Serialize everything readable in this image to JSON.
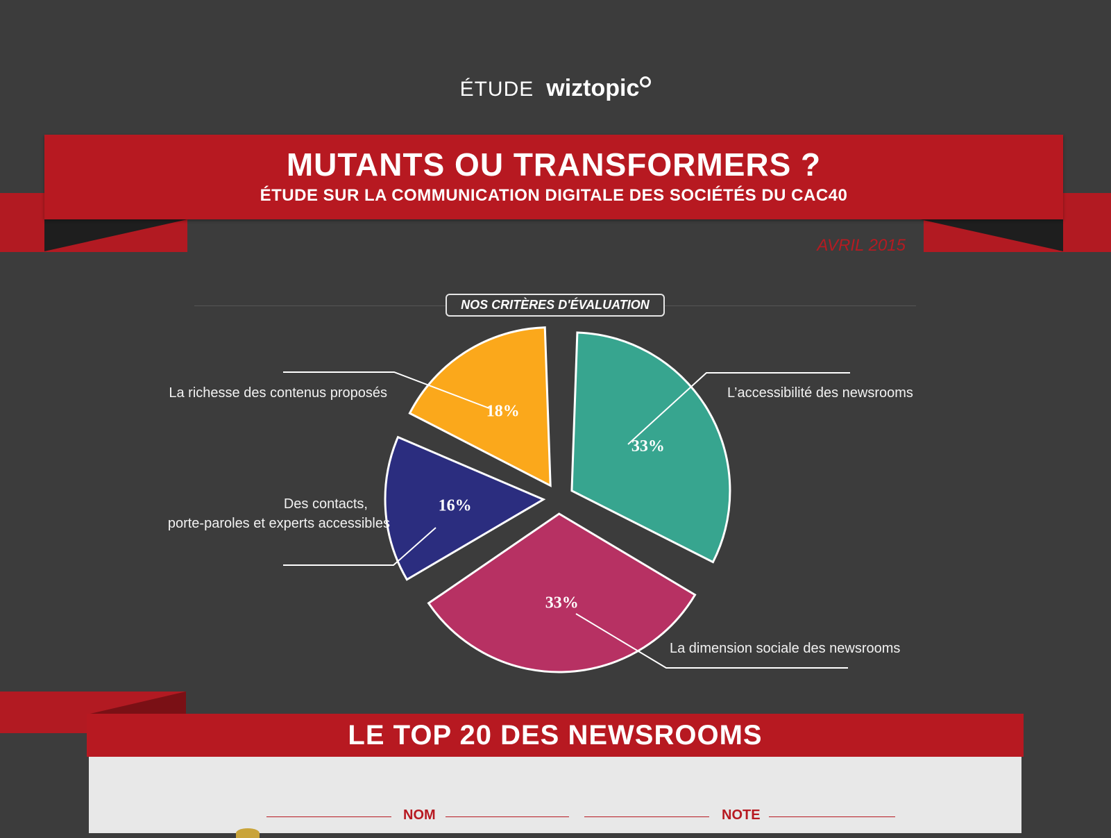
{
  "brand": {
    "prefix": "ÉTUDE",
    "logo": "wiztopic"
  },
  "header": {
    "title": "MUTANTS OU TRANSFORMERS ?",
    "subtitle": "ÉTUDE SUR LA COMMUNICATION DIGITALE DES SOCIÉTÉS DU CAC40",
    "date": "AVRIL 2015",
    "accent_color": "#b71921"
  },
  "section": {
    "label": "NOS CRITÈRES D'ÉVALUATION"
  },
  "chart_data": {
    "type": "pie",
    "title": "",
    "slices": [
      {
        "label": "L’accessibilité des newsrooms",
        "value": 33,
        "display": "33%",
        "color": "#37a58f"
      },
      {
        "label": "La dimension sociale des newsrooms",
        "value": 33,
        "display": "33%",
        "color": "#b73163"
      },
      {
        "label": "Des contacts, porte-paroles et experts accessibles",
        "label_lines": [
          "Des contacts,",
          "porte-paroles et experts accessibles"
        ],
        "value": 16,
        "display": "16%",
        "color": "#2b2d7f"
      },
      {
        "label": "La richesse des contenus proposés",
        "value": 18,
        "display": "18%",
        "color": "#fba81b"
      }
    ],
    "style": "exploded",
    "slice_border_color": "#ffffff"
  },
  "ranking": {
    "title": "LE TOP 20 DES NEWSROOMS",
    "columns": [
      "NOM",
      "NOTE"
    ]
  }
}
